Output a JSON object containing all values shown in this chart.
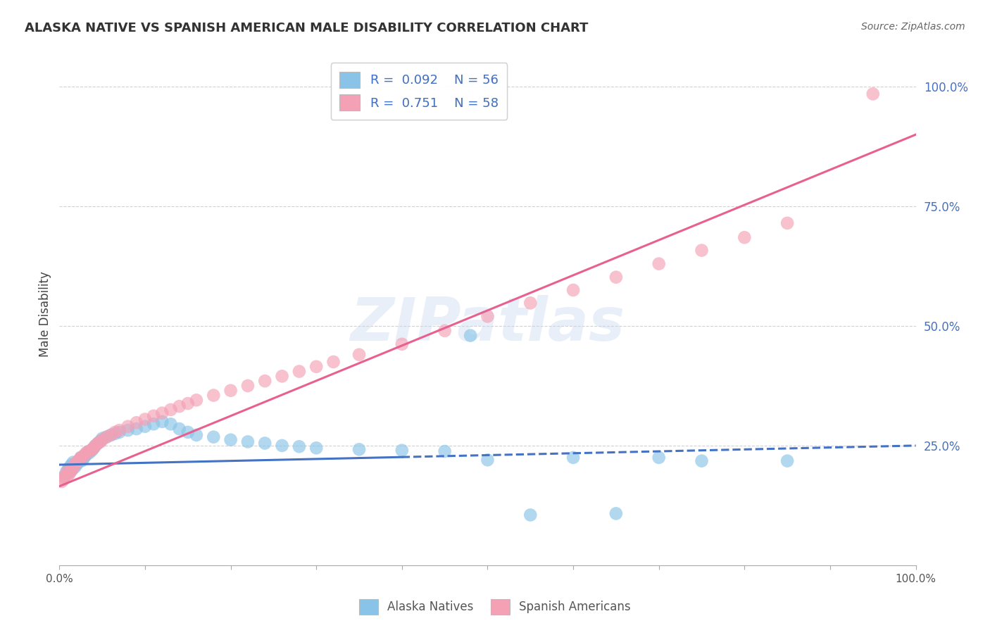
{
  "title": "ALASKA NATIVE VS SPANISH AMERICAN MALE DISABILITY CORRELATION CHART",
  "source": "Source: ZipAtlas.com",
  "ylabel": "Male Disability",
  "watermark": "ZIPatlas",
  "xlim": [
    0.0,
    1.0
  ],
  "ylim": [
    0.0,
    1.05
  ],
  "xticks": [
    0.0,
    0.1,
    0.2,
    0.3,
    0.4,
    0.5,
    0.6,
    0.7,
    0.8,
    0.9,
    1.0
  ],
  "xtick_labels_show": [
    "0.0%",
    "",
    "",
    "",
    "",
    "",
    "",
    "",
    "",
    "",
    "100.0%"
  ],
  "yticks": [
    0.25,
    0.5,
    0.75,
    1.0
  ],
  "ytick_labels": [
    "25.0%",
    "50.0%",
    "75.0%",
    "100.0%"
  ],
  "legend1_label": "Alaska Natives",
  "legend2_label": "Spanish Americans",
  "r1": 0.092,
  "n1": 56,
  "r2": 0.751,
  "n2": 58,
  "color1": "#89C4E8",
  "color2": "#F4A0B5",
  "line_color1": "#4472C4",
  "line_color2": "#E86090",
  "tick_label_color": "#4472C4",
  "grid_color": "#cccccc",
  "background": "#ffffff",
  "alaska_x": [
    0.005,
    0.008,
    0.01,
    0.012,
    0.012,
    0.014,
    0.015,
    0.016,
    0.018,
    0.02,
    0.022,
    0.024,
    0.025,
    0.026,
    0.028,
    0.03,
    0.032,
    0.034,
    0.035,
    0.038,
    0.04,
    0.042,
    0.045,
    0.048,
    0.05,
    0.055,
    0.06,
    0.065,
    0.07,
    0.08,
    0.09,
    0.1,
    0.11,
    0.12,
    0.13,
    0.14,
    0.15,
    0.16,
    0.18,
    0.2,
    0.22,
    0.24,
    0.26,
    0.28,
    0.3,
    0.35,
    0.4,
    0.45,
    0.48,
    0.5,
    0.55,
    0.6,
    0.65,
    0.7,
    0.75,
    0.85
  ],
  "alaska_y": [
    0.185,
    0.195,
    0.2,
    0.205,
    0.195,
    0.21,
    0.2,
    0.215,
    0.205,
    0.21,
    0.215,
    0.22,
    0.225,
    0.218,
    0.222,
    0.228,
    0.232,
    0.238,
    0.235,
    0.24,
    0.245,
    0.25,
    0.255,
    0.26,
    0.265,
    0.268,
    0.272,
    0.275,
    0.278,
    0.282,
    0.285,
    0.29,
    0.295,
    0.3,
    0.295,
    0.285,
    0.278,
    0.272,
    0.268,
    0.262,
    0.258,
    0.255,
    0.25,
    0.248,
    0.245,
    0.242,
    0.24,
    0.238,
    0.48,
    0.22,
    0.105,
    0.225,
    0.108,
    0.225,
    0.218,
    0.218
  ],
  "spanish_x": [
    0.003,
    0.005,
    0.006,
    0.008,
    0.009,
    0.01,
    0.012,
    0.014,
    0.015,
    0.016,
    0.018,
    0.02,
    0.022,
    0.024,
    0.025,
    0.028,
    0.03,
    0.032,
    0.035,
    0.038,
    0.04,
    0.042,
    0.045,
    0.048,
    0.05,
    0.055,
    0.06,
    0.065,
    0.07,
    0.08,
    0.09,
    0.1,
    0.11,
    0.12,
    0.13,
    0.14,
    0.15,
    0.16,
    0.18,
    0.2,
    0.22,
    0.24,
    0.26,
    0.28,
    0.3,
    0.32,
    0.35,
    0.4,
    0.45,
    0.5,
    0.55,
    0.6,
    0.65,
    0.7,
    0.75,
    0.8,
    0.85,
    0.95
  ],
  "spanish_y": [
    0.175,
    0.18,
    0.185,
    0.19,
    0.195,
    0.188,
    0.192,
    0.198,
    0.202,
    0.205,
    0.21,
    0.215,
    0.218,
    0.222,
    0.225,
    0.228,
    0.232,
    0.236,
    0.238,
    0.242,
    0.245,
    0.25,
    0.255,
    0.258,
    0.262,
    0.268,
    0.272,
    0.278,
    0.282,
    0.29,
    0.298,
    0.305,
    0.312,
    0.318,
    0.325,
    0.332,
    0.338,
    0.345,
    0.355,
    0.365,
    0.375,
    0.385,
    0.395,
    0.405,
    0.415,
    0.425,
    0.44,
    0.462,
    0.49,
    0.52,
    0.548,
    0.575,
    0.602,
    0.63,
    0.658,
    0.685,
    0.715,
    0.985
  ],
  "blue_line_solid_end": 0.4,
  "blue_line_y_start": 0.21,
  "blue_line_y_end": 0.25,
  "pink_line_y_start": 0.165,
  "pink_line_y_end": 0.9
}
